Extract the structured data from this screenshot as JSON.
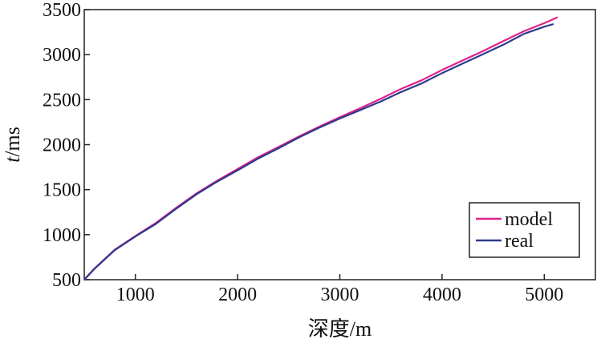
{
  "chart_data": {
    "type": "line",
    "xlabel": "深度/m",
    "ylabel": {
      "italic": "t",
      "rest": "/ms"
    },
    "xlim": [
      500,
      5500
    ],
    "ylim": [
      500,
      3500
    ],
    "xticks": [
      1000,
      2000,
      3000,
      4000,
      5000
    ],
    "yticks": [
      500,
      1000,
      1500,
      2000,
      2500,
      3000,
      3500
    ],
    "grid": false,
    "legend_position": "bottom-right",
    "series": [
      {
        "name": "model",
        "color": "#e0218a",
        "x": [
          500,
          600,
          800,
          1000,
          1200,
          1400,
          1600,
          1800,
          2000,
          2200,
          2400,
          2600,
          2800,
          3000,
          3200,
          3400,
          3600,
          3800,
          4000,
          4200,
          4400,
          4600,
          4800,
          5000,
          5130
        ],
        "y": [
          500,
          625,
          835,
          985,
          1130,
          1300,
          1460,
          1600,
          1730,
          1860,
          1975,
          2090,
          2200,
          2305,
          2405,
          2510,
          2620,
          2715,
          2830,
          2935,
          3040,
          3150,
          3260,
          3350,
          3415
        ]
      },
      {
        "name": "real",
        "color": "#2e3a8c",
        "x": [
          500,
          600,
          800,
          1000,
          1200,
          1400,
          1600,
          1800,
          2000,
          2200,
          2400,
          2600,
          2800,
          3000,
          3200,
          3400,
          3600,
          3800,
          4000,
          4200,
          4400,
          4600,
          4800,
          5000,
          5090
        ],
        "y": [
          500,
          620,
          830,
          980,
          1120,
          1290,
          1450,
          1590,
          1715,
          1845,
          1960,
          2080,
          2190,
          2290,
          2385,
          2480,
          2585,
          2680,
          2795,
          2900,
          3005,
          3110,
          3230,
          3310,
          3340
        ]
      }
    ]
  }
}
